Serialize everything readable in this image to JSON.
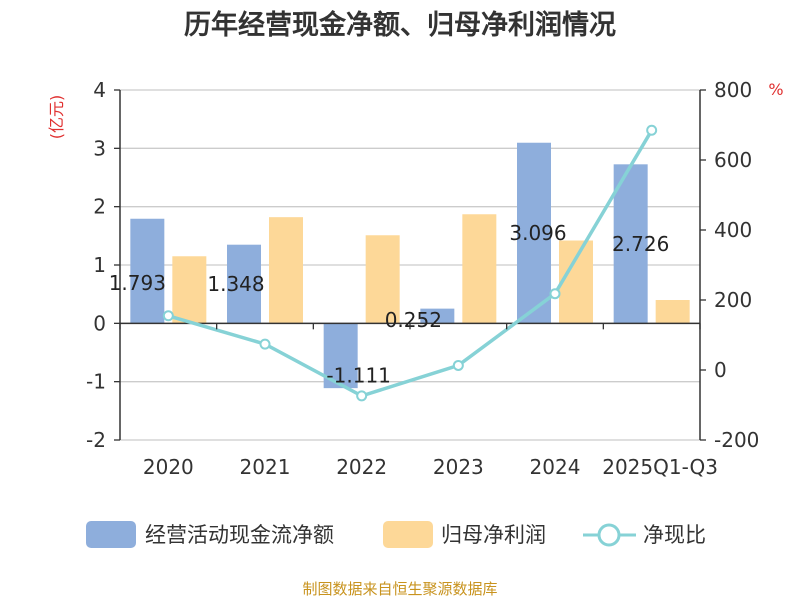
{
  "chart_data": {
    "type": "bar",
    "title": "历年经营现金净额、归母净利润情况",
    "categories": [
      "2020",
      "2021",
      "2022",
      "2023",
      "2024",
      "2025Q1-Q3"
    ],
    "y_left_unit": "(亿元)",
    "y_right_unit": "%",
    "ylim_left": [
      -2,
      4
    ],
    "ylim_right": [
      -200,
      800
    ],
    "y_left_ticks": [
      -2,
      -1,
      0,
      1,
      2,
      3,
      4
    ],
    "y_right_ticks": [
      -200,
      0,
      200,
      400,
      600,
      800
    ],
    "series": [
      {
        "name": "经营活动现金流净额",
        "type": "bar",
        "axis": "left",
        "color": "#8eaedc",
        "values": [
          1.793,
          1.348,
          -1.111,
          0.252,
          3.096,
          2.726
        ],
        "labels": [
          "1.793",
          "1.348",
          "-1.111",
          "0.252",
          "3.096",
          "2.726"
        ]
      },
      {
        "name": "归母净利润",
        "type": "bar",
        "axis": "left",
        "color": "#fdd898",
        "values": [
          1.15,
          1.82,
          1.51,
          1.87,
          1.42,
          0.4
        ]
      },
      {
        "name": "净现比",
        "type": "line",
        "axis": "right",
        "color": "#86d2d6",
        "values": [
          155,
          74,
          -74,
          13,
          218,
          685
        ]
      }
    ],
    "grid": true,
    "legend_position": "bottom"
  },
  "footer": {
    "source": "制图数据来自恒生聚源数据库"
  }
}
